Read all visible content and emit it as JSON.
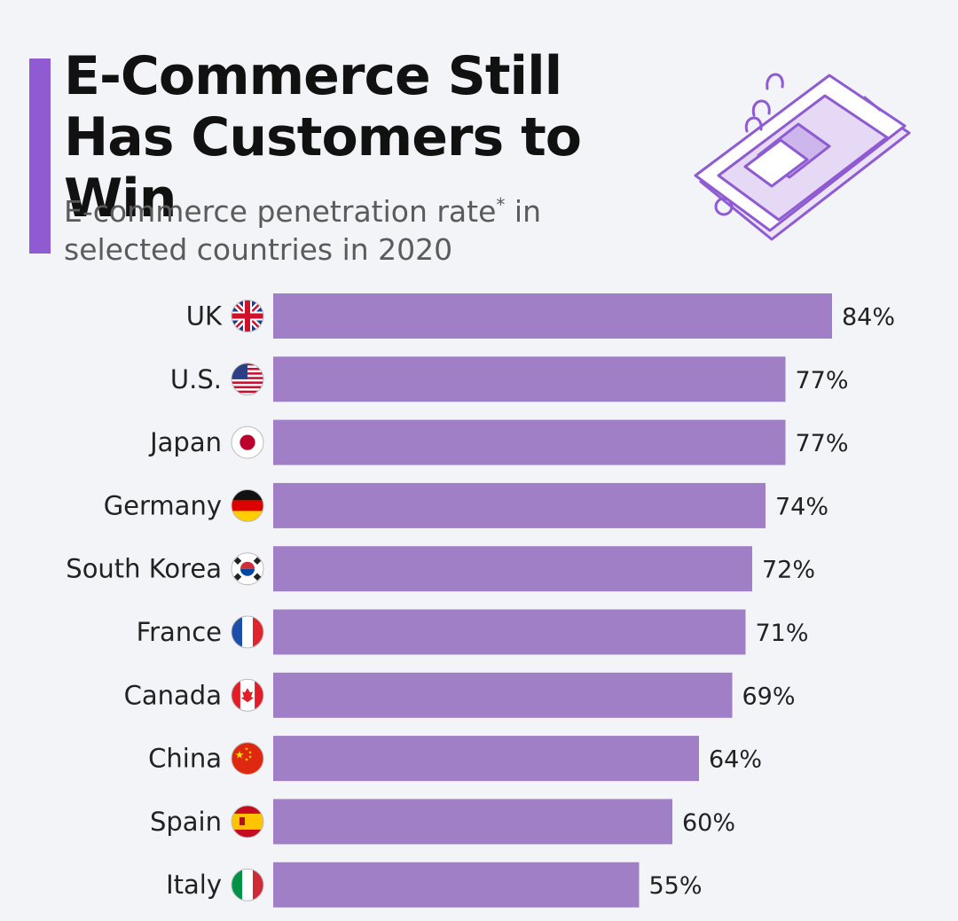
{
  "header": {
    "title": "E-Commerce Still Has Customers to Win",
    "subtitle": "E-commerce penetration rate",
    "subtitle_mark": "*",
    "subtitle_rest": " in selected countries in 2020"
  },
  "colors": {
    "bar": "#a07fc7",
    "accent": "#8e5bd3"
  },
  "chart_data": {
    "type": "bar",
    "orientation": "horizontal",
    "categories": [
      "UK",
      "U.S.",
      "Japan",
      "Germany",
      "South Korea",
      "France",
      "Canada",
      "China",
      "Spain",
      "Italy"
    ],
    "values": [
      84,
      77,
      77,
      74,
      72,
      71,
      69,
      64,
      60,
      55
    ],
    "value_labels": [
      "84%",
      "77%",
      "77%",
      "74%",
      "72%",
      "71%",
      "69%",
      "64%",
      "60%",
      "55%"
    ],
    "flags": [
      "uk-flag-icon",
      "us-flag-icon",
      "japan-flag-icon",
      "germany-flag-icon",
      "south-korea-flag-icon",
      "france-flag-icon",
      "canada-flag-icon",
      "china-flag-icon",
      "spain-flag-icon",
      "italy-flag-icon"
    ],
    "title": "E-Commerce Still Has Customers to Win",
    "xlabel": "",
    "ylabel": "",
    "xlim": [
      0,
      84
    ],
    "grid": false,
    "legend": "none"
  }
}
